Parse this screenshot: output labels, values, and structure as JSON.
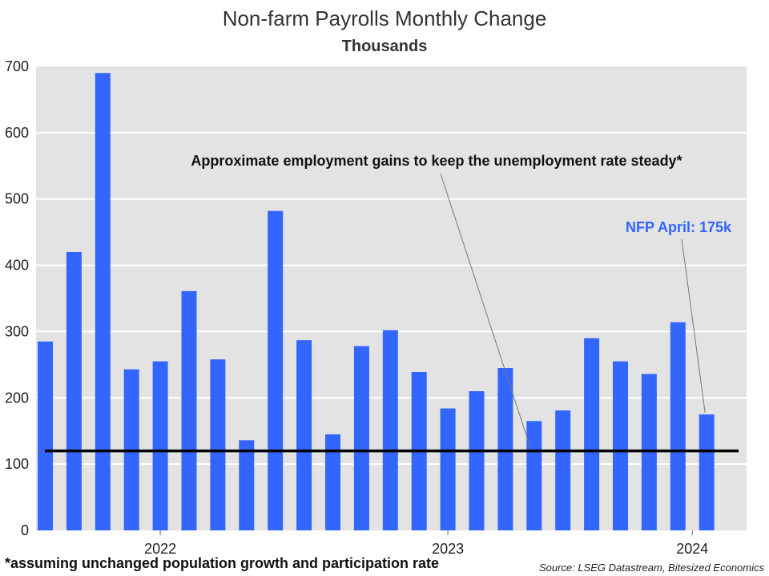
{
  "chart_data": {
    "type": "bar",
    "title": "Non-farm Payrolls Monthly Change",
    "subtitle": "Thousands",
    "ylim": [
      0,
      700
    ],
    "yticks": [
      0,
      100,
      200,
      300,
      400,
      500,
      600,
      700
    ],
    "xtick_labels": [
      {
        "label": "2022",
        "index": 4
      },
      {
        "label": "2023",
        "index": 14
      },
      {
        "label": "2024",
        "index": 22.5
      }
    ],
    "values": [
      285,
      420,
      690,
      243,
      255,
      361,
      258,
      136,
      482,
      287,
      145,
      278,
      302,
      239,
      184,
      210,
      245,
      165,
      181,
      290,
      255,
      236,
      314,
      175
    ],
    "bar_color": "#3366ff",
    "reference_line": {
      "value": 120,
      "color": "#000000"
    },
    "annotation": "Approximate employment gains to keep the unemployment rate steady*",
    "highlight_label": "NFP April: 175k",
    "highlight_color": "#3366ff",
    "footnote": "*assuming unchanged population growth and participation rate",
    "source": "Source: LSEG Datastream, Bitesized Economics",
    "grid": true,
    "background": "#e3e3e3"
  }
}
